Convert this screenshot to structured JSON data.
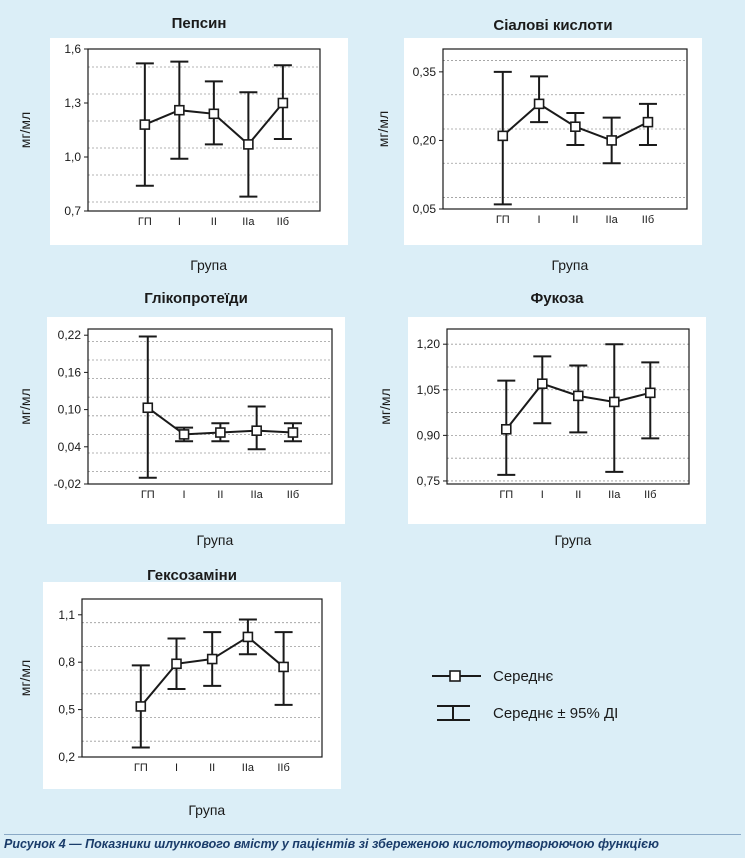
{
  "caption": "Рисунок 4 — Показники шлункового вмісту у пацієнтів зі збереженою кислотоутворюючою функцією",
  "legend": {
    "mean_label": "Середнє",
    "ci_label": "Середнє ± 95% ДІ"
  },
  "chart_data": [
    {
      "type": "line",
      "title": "Пепсин",
      "xlabel": "Група",
      "ylabel": "мг/мл",
      "categories": [
        "ГП",
        "I",
        "II",
        "IIa",
        "IIб"
      ],
      "yticks": [
        "0,7",
        "1,0",
        "1,3",
        "1,6"
      ],
      "ylim": [
        0.7,
        1.6
      ],
      "grid_minor": 0.15,
      "mean": [
        1.18,
        1.26,
        1.24,
        1.07,
        1.3
      ],
      "ci_low": [
        0.84,
        0.99,
        1.07,
        0.78,
        1.1
      ],
      "ci_high": [
        1.52,
        1.53,
        1.42,
        1.36,
        1.51
      ]
    },
    {
      "type": "line",
      "title": "Сіалові кислоти",
      "xlabel": "Група",
      "ylabel": "мг/мл",
      "categories": [
        "ГП",
        "I",
        "II",
        "IIa",
        "IIб"
      ],
      "yticks": [
        "0,05",
        "0,20",
        "0,35"
      ],
      "ylim": [
        0.05,
        0.4
      ],
      "grid_minor": 0.075,
      "mean": [
        0.21,
        0.28,
        0.23,
        0.2,
        0.24
      ],
      "ci_low": [
        0.06,
        0.24,
        0.19,
        0.15,
        0.19
      ],
      "ci_high": [
        0.35,
        0.34,
        0.26,
        0.25,
        0.28
      ]
    },
    {
      "type": "line",
      "title": "Глікопротеїди",
      "xlabel": "Група",
      "ylabel": "мг/мл",
      "categories": [
        "ГП",
        "I",
        "II",
        "IIa",
        "IIб"
      ],
      "yticks": [
        "-0,02",
        "0,04",
        "0,10",
        "0,16",
        "0,22"
      ],
      "ylim": [
        -0.02,
        0.23
      ],
      "grid_minor": 0.03,
      "mean": [
        0.103,
        0.06,
        0.063,
        0.066,
        0.063
      ],
      "ci_low": [
        -0.01,
        0.049,
        0.049,
        0.036,
        0.049
      ],
      "ci_high": [
        0.218,
        0.071,
        0.078,
        0.105,
        0.078
      ]
    },
    {
      "type": "line",
      "title": "Фукоза",
      "xlabel": "Група",
      "ylabel": "мг/мл",
      "categories": [
        "ГП",
        "I",
        "II",
        "IIa",
        "IIб"
      ],
      "yticks": [
        "0,75",
        "0,90",
        "1,05",
        "1,20"
      ],
      "ylim": [
        0.74,
        1.25
      ],
      "grid_minor": 0.075,
      "mean": [
        0.92,
        1.07,
        1.03,
        1.01,
        1.04
      ],
      "ci_low": [
        0.77,
        0.94,
        0.91,
        0.78,
        0.89
      ],
      "ci_high": [
        1.08,
        1.16,
        1.13,
        1.2,
        1.14
      ]
    },
    {
      "type": "line",
      "title": "Гексозаміни",
      "xlabel": "Група",
      "ylabel": "мг/мл",
      "categories": [
        "ГП",
        "I",
        "II",
        "IIa",
        "IIб"
      ],
      "yticks": [
        "0,2",
        "0,5",
        "0,8",
        "1,1"
      ],
      "ylim": [
        0.2,
        1.2
      ],
      "grid_minor": 0.15,
      "mean": [
        0.52,
        0.79,
        0.82,
        0.96,
        0.77
      ],
      "ci_low": [
        0.26,
        0.63,
        0.65,
        0.85,
        0.53
      ],
      "ci_high": [
        0.78,
        0.95,
        0.99,
        1.07,
        0.99
      ]
    }
  ]
}
